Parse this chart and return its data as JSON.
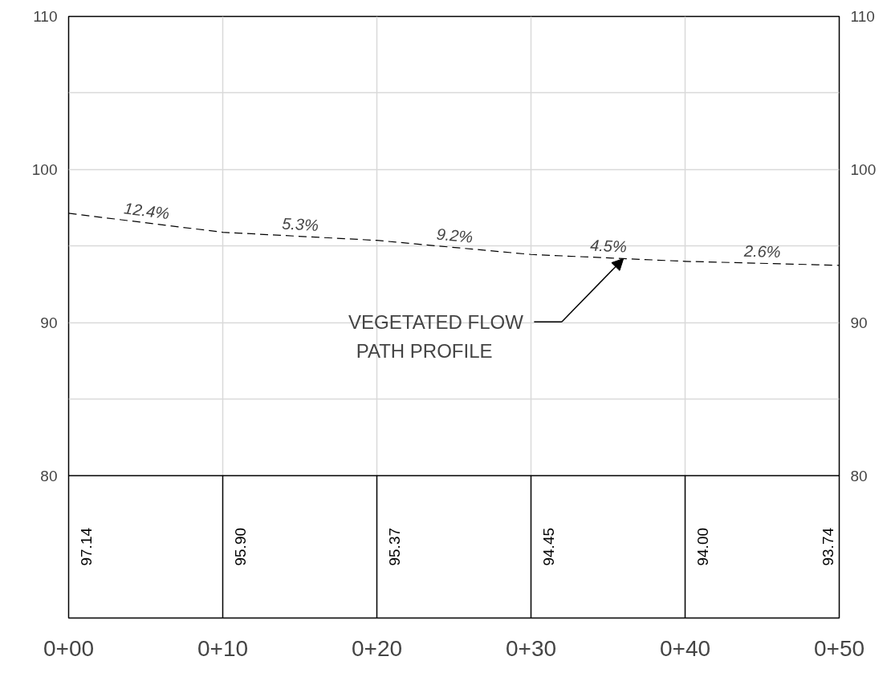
{
  "chart_data": {
    "type": "line",
    "categories": [
      "0+00",
      "0+10",
      "0+20",
      "0+30",
      "0+40",
      "0+50"
    ],
    "series": [
      {
        "color": "#000000",
        "values": [
          97.14,
          95.9,
          95.37,
          94.45,
          94.0,
          93.74
        ]
      }
    ],
    "value_labels": [
      "97.14",
      "95.90",
      "95.37",
      "94.45",
      "94.00",
      "93.74"
    ],
    "line_style": "dashed",
    "marker": "none",
    "ylim": [
      70.7,
      110
    ],
    "yticks": [
      80,
      {
        "value": 85,
        "label": null
      },
      90,
      {
        "value": 95,
        "label": null
      },
      100,
      {
        "value": 105,
        "label": null
      },
      110
    ],
    "y2lim": [
      70.7,
      110
    ],
    "y2ticks": [
      80,
      {
        "value": 85,
        "label": null
      },
      90,
      {
        "value": 95,
        "label": null
      },
      100,
      {
        "value": 105,
        "label": null
      },
      110
    ],
    "grid": true,
    "ref_lines": [
      {
        "axis": "y",
        "value": 80,
        "color": "#000000"
      },
      {
        "axis": "x",
        "value": "0+10",
        "color": "#000000"
      },
      {
        "axis": "x",
        "value": "0+20",
        "color": "#000000"
      },
      {
        "axis": "x",
        "value": "0+30",
        "color": "#000000"
      },
      {
        "axis": "x",
        "value": "0+40",
        "color": "#000000"
      }
    ],
    "annotations": [
      "12.4%",
      "5.3%",
      "9.2%",
      "4.5%",
      "2.6%",
      "VEGETATED FLOW\nPATH PROFILE"
    ]
  }
}
